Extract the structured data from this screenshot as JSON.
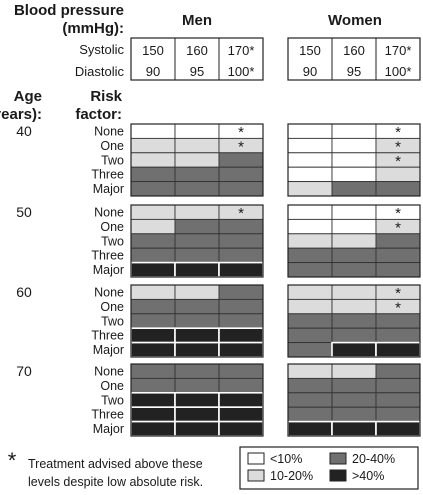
{
  "chart_data": {
    "type": "table",
    "header": {
      "bp_title": "Blood pressure",
      "bp_unit": "(mmHg):",
      "men": "Men",
      "women": "Women",
      "systolic_label": "Systolic",
      "diastolic_label": "Diastolic",
      "systolic": [
        "150",
        "160",
        "170*"
      ],
      "diastolic": [
        "90",
        "95",
        "100*"
      ],
      "age_title": "Age",
      "age_unit": "(years):",
      "risk_title": "Risk",
      "risk_unit": "factor:"
    },
    "risk_factors": [
      "None",
      "One",
      "Two",
      "Three",
      "Major"
    ],
    "ages": [
      "40",
      "50",
      "60",
      "70"
    ],
    "category_key": {
      "0": "<10%",
      "1": "10-20%",
      "2": "20-40%",
      "3": ">40%"
    },
    "colors": {
      "0": "#ffffff",
      "1": "#dcdcdc",
      "2": "#707070",
      "3": "#222222"
    },
    "groups": [
      {
        "age": "40",
        "men": [
          [
            0,
            0,
            0
          ],
          [
            1,
            1,
            1
          ],
          [
            1,
            1,
            2
          ],
          [
            2,
            2,
            2
          ],
          [
            2,
            2,
            2
          ]
        ],
        "women": [
          [
            0,
            0,
            0
          ],
          [
            0,
            0,
            1
          ],
          [
            0,
            0,
            1
          ],
          [
            0,
            0,
            1
          ],
          [
            1,
            2,
            2
          ]
        ],
        "men_star": [
          [
            false,
            false,
            true
          ],
          [
            false,
            false,
            true
          ],
          [
            false,
            false,
            false
          ],
          [
            false,
            false,
            false
          ],
          [
            false,
            false,
            false
          ]
        ],
        "women_star": [
          [
            false,
            false,
            true
          ],
          [
            false,
            false,
            true
          ],
          [
            false,
            false,
            true
          ],
          [
            false,
            false,
            false
          ],
          [
            false,
            false,
            false
          ]
        ]
      },
      {
        "age": "50",
        "men": [
          [
            1,
            1,
            1
          ],
          [
            1,
            2,
            2
          ],
          [
            2,
            2,
            2
          ],
          [
            2,
            2,
            2
          ],
          [
            3,
            3,
            3
          ]
        ],
        "women": [
          [
            0,
            0,
            0
          ],
          [
            0,
            0,
            1
          ],
          [
            1,
            1,
            2
          ],
          [
            2,
            2,
            2
          ],
          [
            2,
            2,
            2
          ]
        ],
        "men_star": [
          [
            false,
            false,
            true
          ],
          [
            false,
            false,
            false
          ],
          [
            false,
            false,
            false
          ],
          [
            false,
            false,
            false
          ],
          [
            false,
            false,
            false
          ]
        ],
        "women_star": [
          [
            false,
            false,
            true
          ],
          [
            false,
            false,
            true
          ],
          [
            false,
            false,
            false
          ],
          [
            false,
            false,
            false
          ],
          [
            false,
            false,
            false
          ]
        ]
      },
      {
        "age": "60",
        "men": [
          [
            1,
            1,
            2
          ],
          [
            2,
            2,
            2
          ],
          [
            2,
            2,
            2
          ],
          [
            3,
            3,
            3
          ],
          [
            3,
            3,
            3
          ]
        ],
        "women": [
          [
            1,
            1,
            1
          ],
          [
            1,
            1,
            1
          ],
          [
            2,
            2,
            2
          ],
          [
            2,
            2,
            2
          ],
          [
            2,
            3,
            3
          ]
        ],
        "men_star": [
          [
            false,
            false,
            false
          ],
          [
            false,
            false,
            false
          ],
          [
            false,
            false,
            false
          ],
          [
            false,
            false,
            false
          ],
          [
            false,
            false,
            false
          ]
        ],
        "women_star": [
          [
            false,
            false,
            true
          ],
          [
            false,
            false,
            true
          ],
          [
            false,
            false,
            false
          ],
          [
            false,
            false,
            false
          ],
          [
            false,
            false,
            false
          ]
        ]
      },
      {
        "age": "70",
        "men": [
          [
            2,
            2,
            2
          ],
          [
            2,
            2,
            2
          ],
          [
            3,
            3,
            3
          ],
          [
            3,
            3,
            3
          ],
          [
            3,
            3,
            3
          ]
        ],
        "women": [
          [
            1,
            1,
            2
          ],
          [
            2,
            2,
            2
          ],
          [
            2,
            2,
            2
          ],
          [
            2,
            2,
            2
          ],
          [
            3,
            3,
            3
          ]
        ],
        "men_star": [
          [
            false,
            false,
            false
          ],
          [
            false,
            false,
            false
          ],
          [
            false,
            false,
            false
          ],
          [
            false,
            false,
            false
          ],
          [
            false,
            false,
            false
          ]
        ],
        "women_star": [
          [
            false,
            false,
            false
          ],
          [
            false,
            false,
            false
          ],
          [
            false,
            false,
            false
          ],
          [
            false,
            false,
            false
          ],
          [
            false,
            false,
            false
          ]
        ]
      }
    ],
    "footnote": {
      "star": "*",
      "line1": "Treatment advised above these",
      "line2": "levels despite low absolute risk."
    },
    "legend": {
      "items": [
        {
          "key": "0",
          "label": "<10%"
        },
        {
          "key": "2",
          "label": "20-40%"
        },
        {
          "key": "1",
          "label": "10-20%"
        },
        {
          "key": "3",
          "label": ">40%"
        }
      ],
      "placement": "bottom-right"
    }
  }
}
